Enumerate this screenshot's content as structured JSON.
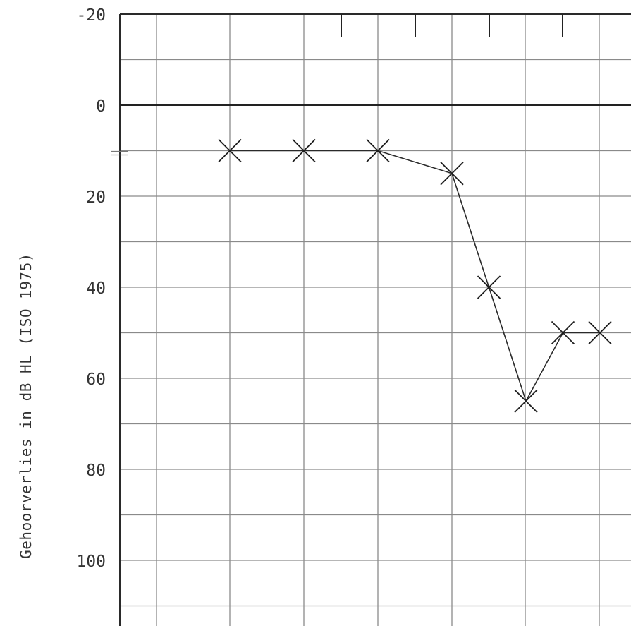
{
  "chart_data": {
    "type": "line",
    "title": "",
    "xlabel": "",
    "ylabel": "Gehoorverlies in dB HL (ISO 1975)",
    "ylim": [
      -20,
      110
    ],
    "y_inverted": true,
    "y_ticks": [
      -20,
      0,
      20,
      40,
      60,
      80,
      100
    ],
    "grid": true,
    "marker": "x",
    "series": [
      {
        "x": [
          1,
          2,
          3,
          4,
          4.5,
          5,
          5.5,
          6
        ],
        "values": [
          10,
          10,
          10,
          15,
          40,
          65,
          50,
          50
        ]
      }
    ],
    "colors": {
      "line": "#2a2a2a",
      "grid": "#8a8a8a"
    }
  }
}
